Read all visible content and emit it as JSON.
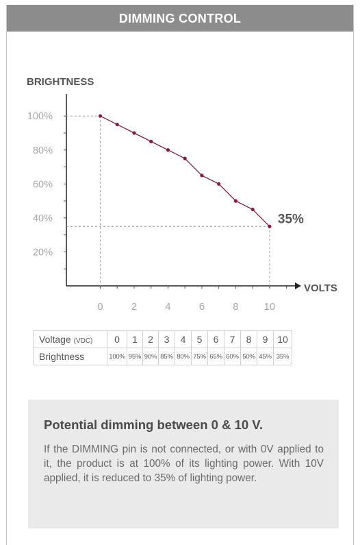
{
  "header": {
    "title": "DIMMING CONTROL"
  },
  "chart_data": {
    "type": "line",
    "ylabel": "BRIGHTNESS",
    "xlabel": "VOLTS",
    "ytick_labels": [
      "100%",
      "80%",
      "60%",
      "40%",
      "20%"
    ],
    "yticks": [
      100,
      80,
      60,
      40,
      20
    ],
    "xtick_labels": [
      "0",
      "2",
      "4",
      "6",
      "8",
      "10"
    ],
    "xticks": [
      0,
      2,
      4,
      6,
      8,
      10
    ],
    "xlim": [
      -2,
      11.5
    ],
    "ylim": [
      0,
      113
    ],
    "x": [
      0,
      1,
      2,
      3,
      4,
      5,
      6,
      7,
      8,
      9,
      10
    ],
    "y": [
      100,
      95,
      90,
      85,
      80,
      75,
      65,
      60,
      50,
      45,
      35
    ],
    "end_annotation": "35%",
    "line_color": "#8b1a3c",
    "guide_color": "#9a9a9a"
  },
  "table": {
    "voltage_label": "Voltage",
    "voltage_unit": "(VDC)",
    "voltages": [
      "0",
      "1",
      "2",
      "3",
      "4",
      "5",
      "6",
      "7",
      "8",
      "9",
      "10"
    ],
    "brightness_label": "Brightness",
    "brightness": [
      "100%",
      "95%",
      "90%",
      "85%",
      "80%",
      "75%",
      "65%",
      "60%",
      "50%",
      "45%",
      "35%"
    ]
  },
  "info": {
    "title": "Potential dimming between 0 & 10 V.",
    "text": "If the DIMMING pin is not connected, or with 0V applied to it, the product is at 100% of its lighting power. With 10V applied, it is reduced to 35% of lighting power."
  }
}
